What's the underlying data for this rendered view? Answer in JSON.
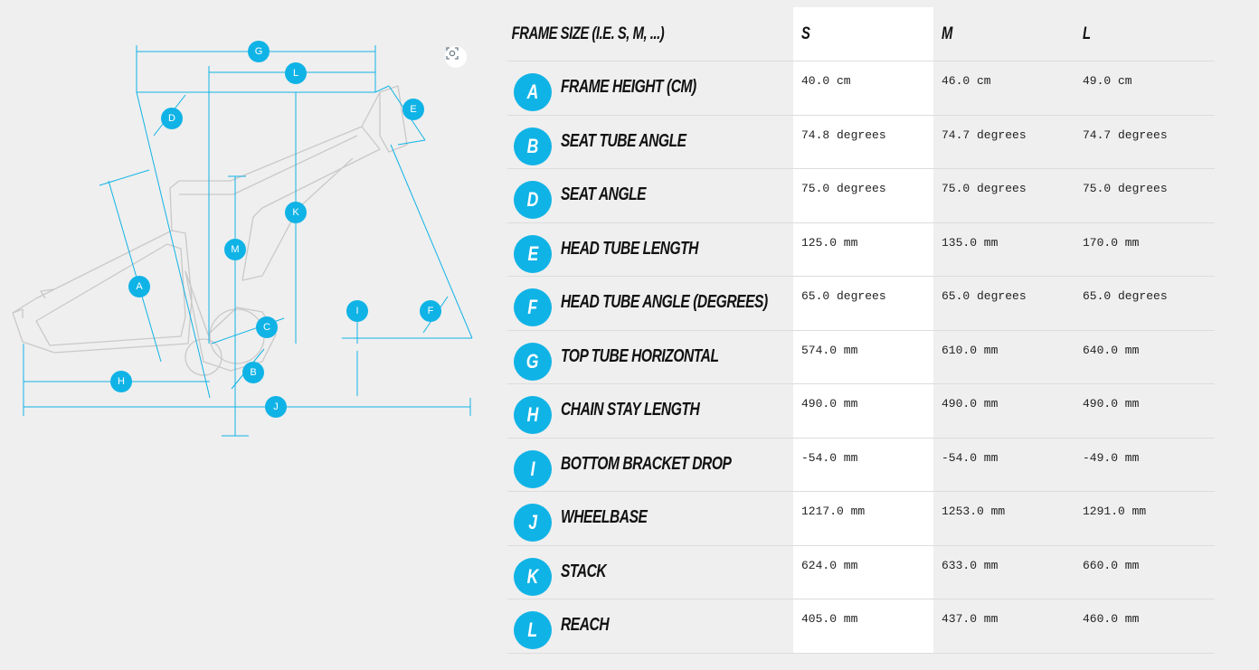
{
  "diagram": {
    "markers": [
      "G",
      "L",
      "D",
      "E",
      "K",
      "M",
      "A",
      "I",
      "F",
      "C",
      "B",
      "H",
      "J"
    ],
    "zoom_icon": "focus-scan-icon",
    "accent_color": "#10b3e6",
    "frame_color": "#c9c9c9"
  },
  "table": {
    "header": {
      "label": "Frame size (i.e. S, M, ...)",
      "s": "S",
      "m": "M",
      "l": "L"
    },
    "rows": [
      {
        "key": "A",
        "label": "Frame height (cm)",
        "s": "40.0 cm",
        "m": "46.0 cm",
        "l": "49.0 cm"
      },
      {
        "key": "B",
        "label": "Seat tube angle",
        "s": "74.8 degrees",
        "m": "74.7 degrees",
        "l": "74.7 degrees"
      },
      {
        "key": "D",
        "label": "Seat angle",
        "s": "75.0 degrees",
        "m": "75.0 degrees",
        "l": "75.0 degrees"
      },
      {
        "key": "E",
        "label": "Head tube length",
        "s": "125.0 mm",
        "m": "135.0 mm",
        "l": "170.0 mm"
      },
      {
        "key": "F",
        "label": "Head tube angle (degrees)",
        "s": "65.0 degrees",
        "m": "65.0 degrees",
        "l": "65.0 degrees"
      },
      {
        "key": "G",
        "label": "Top tube horizontal",
        "s": "574.0 mm",
        "m": "610.0 mm",
        "l": "640.0 mm"
      },
      {
        "key": "H",
        "label": "Chain stay length",
        "s": "490.0 mm",
        "m": "490.0 mm",
        "l": "490.0 mm"
      },
      {
        "key": "I",
        "label": "Bottom bracket drop",
        "s": "-54.0 mm",
        "m": "-54.0 mm",
        "l": "-49.0 mm"
      },
      {
        "key": "J",
        "label": "Wheelbase",
        "s": "1217.0 mm",
        "m": "1253.0 mm",
        "l": "1291.0 mm"
      },
      {
        "key": "K",
        "label": "Stack",
        "s": "624.0 mm",
        "m": "633.0 mm",
        "l": "660.0 mm"
      },
      {
        "key": "L",
        "label": "Reach",
        "s": "405.0 mm",
        "m": "437.0 mm",
        "l": "460.0 mm"
      }
    ]
  }
}
